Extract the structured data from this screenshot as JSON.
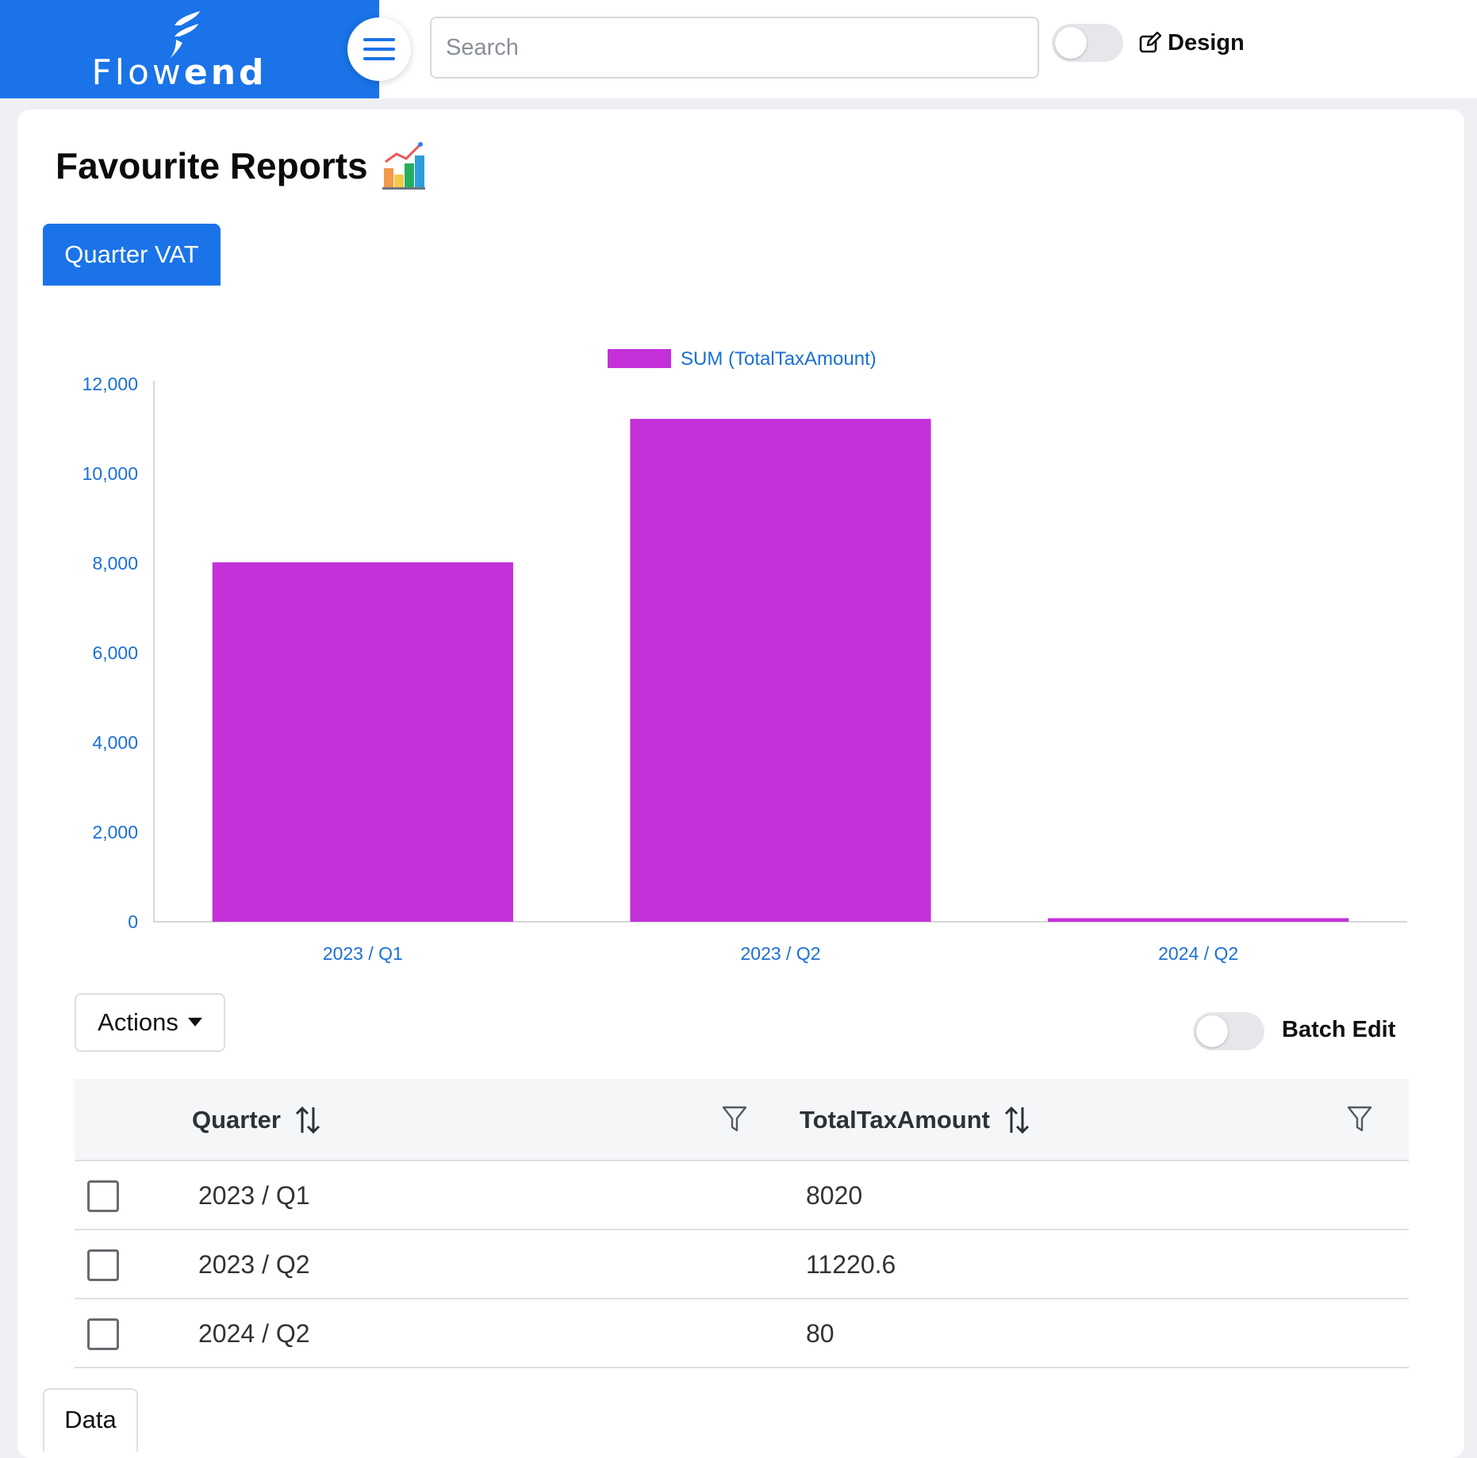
{
  "brand": {
    "name_light": "Flow",
    "name_bold": "end"
  },
  "search": {
    "placeholder": "Search"
  },
  "header": {
    "design_label": "Design"
  },
  "page": {
    "title": "Favourite Reports",
    "active_tab": "Quarter VAT"
  },
  "colors": {
    "brand": "#1a73e8",
    "bar": "#c431d9",
    "axis_text": "#1a6fd6"
  },
  "chart_data": {
    "type": "bar",
    "categories": [
      "2023 / Q1",
      "2023 / Q2",
      "2024 / Q2"
    ],
    "series": [
      {
        "name": "SUM (TotalTaxAmount)",
        "values": [
          8020,
          11220.6,
          80
        ]
      }
    ],
    "yticks": [
      "0",
      "2,000",
      "4,000",
      "6,000",
      "8,000",
      "10,000",
      "12,000"
    ],
    "ylim": [
      0,
      12000
    ],
    "grid": false,
    "legend": "top"
  },
  "actions": {
    "label": "Actions",
    "batch_edit_label": "Batch Edit"
  },
  "table": {
    "columns": [
      "Quarter",
      "TotalTaxAmount"
    ],
    "rows": [
      {
        "quarter": "2023 / Q1",
        "total": "8020"
      },
      {
        "quarter": "2023 / Q2",
        "total": "11220.6"
      },
      {
        "quarter": "2024 / Q2",
        "total": "80"
      }
    ]
  },
  "footer_tab": {
    "label": "Data"
  },
  "icons": {
    "menu": "hamburger-icon",
    "design": "edit-icon",
    "title": "chart-emoji-icon",
    "sort": "sort-arrows-icon",
    "filter": "funnel-icon",
    "dropdown": "caret-down-icon"
  }
}
